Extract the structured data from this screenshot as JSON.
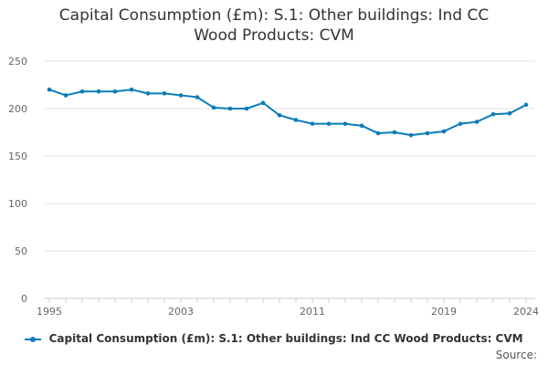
{
  "chart_data": {
    "type": "line",
    "title_lines": [
      "Capital Consumption (£m): S.1: Other buildings: Ind CC",
      "Wood Products: CVM"
    ],
    "title": "Capital Consumption (£m): S.1: Other buildings: Ind CC Wood Products: CVM",
    "xlabel": "",
    "ylabel": "",
    "x": [
      1995,
      1996,
      1997,
      1998,
      1999,
      2000,
      2001,
      2002,
      2003,
      2004,
      2005,
      2006,
      2007,
      2008,
      2009,
      2010,
      2011,
      2012,
      2013,
      2014,
      2015,
      2016,
      2017,
      2018,
      2019,
      2020,
      2021,
      2022,
      2023,
      2024
    ],
    "series": [
      {
        "name": "Capital Consumption (£m): S.1: Other buildings: Ind CC Wood Products: CVM",
        "color": "#0b7cba",
        "values": [
          220,
          214,
          218,
          218,
          218,
          220,
          216,
          216,
          214,
          212,
          201,
          200,
          200,
          206,
          193,
          188,
          184,
          184,
          184,
          182,
          174,
          175,
          172,
          174,
          176,
          184,
          186,
          194,
          195,
          204
        ]
      }
    ],
    "xticks": [
      1995,
      2003,
      2011,
      2019,
      2024
    ],
    "yticks": [
      0,
      50,
      100,
      150,
      200,
      250
    ],
    "xlim": [
      1995,
      2024
    ],
    "ylim": [
      0,
      250
    ],
    "grid": true,
    "legend_position": "bottom"
  },
  "footer": {
    "source_label": "Source:"
  }
}
